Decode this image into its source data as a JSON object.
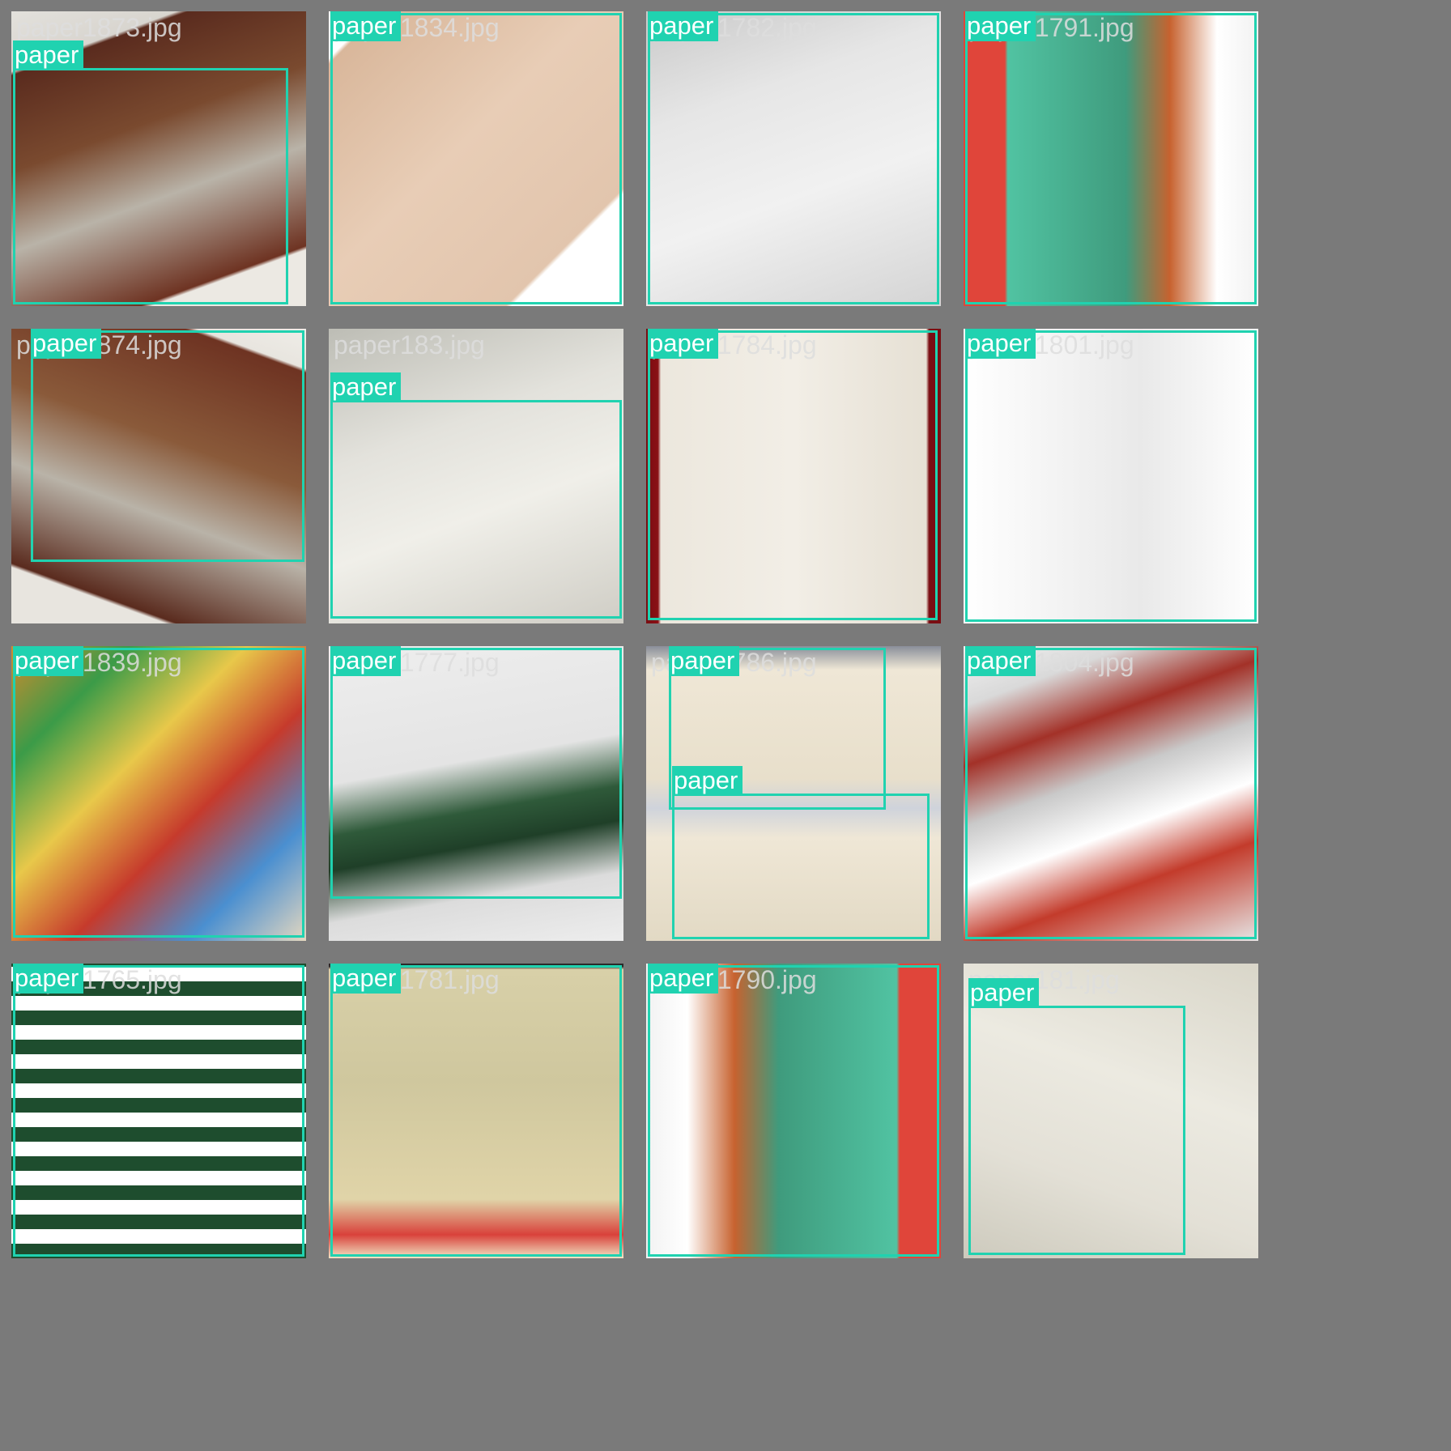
{
  "colors": {
    "box": "#20d2b0",
    "background": "#7a7a7a"
  },
  "tiles": [
    {
      "file": "paper1873.jpg",
      "photo": "catalog cover"
    },
    {
      "file": "paper1834.jpg",
      "photo": "kraft board"
    },
    {
      "file": "paper1782.jpg",
      "photo": "razor mailer"
    },
    {
      "file": "paper1791.jpg",
      "photo": "magazine cover"
    },
    {
      "file": "paper1874.jpg",
      "photo": "catalog cover"
    },
    {
      "file": "paper183.jpg",
      "photo": "crumpled sheet"
    },
    {
      "file": "paper1784.jpg",
      "photo": "old newspaper"
    },
    {
      "file": "paper1801.jpg",
      "photo": "newspaper page"
    },
    {
      "file": "paper1839.jpg",
      "photo": "coupon pile"
    },
    {
      "file": "paper1777.jpg",
      "photo": "mail envelope"
    },
    {
      "file": "paper1786.jpg",
      "photo": "folded cardstock"
    },
    {
      "file": "paper1804.jpg",
      "photo": "ad flyers"
    },
    {
      "file": "paper1765.jpg",
      "photo": "coupon booklets"
    },
    {
      "file": "paper1781.jpg",
      "photo": "comic page"
    },
    {
      "file": "paper1790.jpg",
      "photo": "magazine cover upside down"
    },
    {
      "file": "paper181.jpg",
      "photo": "crumpled sheet"
    }
  ],
  "labels": {
    "t0": [
      "paper"
    ],
    "t1": [
      "paper"
    ],
    "t2": [
      "paper"
    ],
    "t3": [
      "paper"
    ],
    "t4": [
      "paper"
    ],
    "t5": [
      "paper"
    ],
    "t6": [
      "paper"
    ],
    "t7": [
      "paper"
    ],
    "t8": [
      "paper"
    ],
    "t9": [
      "paper"
    ],
    "t10": [
      "paper",
      "paper"
    ],
    "t11": [
      "paper"
    ],
    "t12": [
      "paper"
    ],
    "t13": [
      "paper"
    ],
    "t14": [
      "paper"
    ],
    "t15": [
      "paper"
    ]
  }
}
